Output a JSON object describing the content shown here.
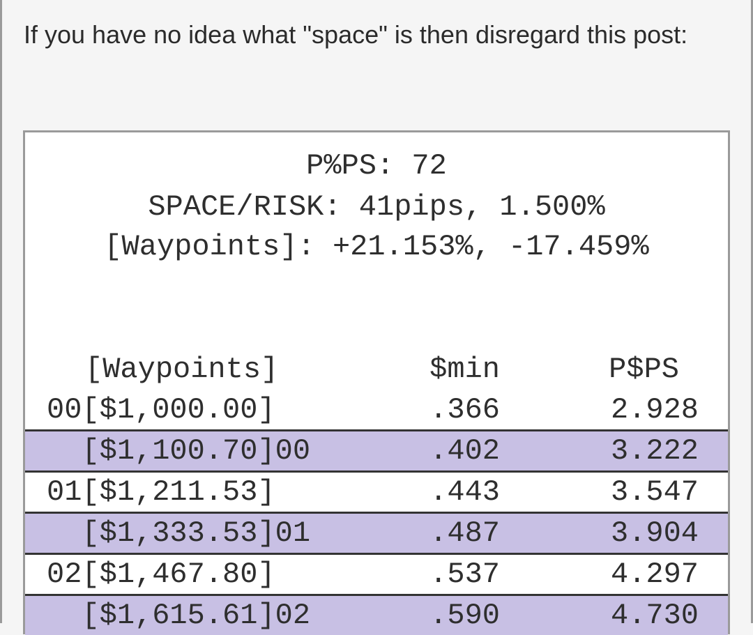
{
  "post": {
    "text": "If you have no idea what \"space\" is then disregard this post:"
  },
  "image": {
    "summary_lines": [
      "P%PS: 72",
      "SPACE/RISK: 41pips, 1.500%",
      "[Waypoints]: +21.153%, -17.459%"
    ],
    "table": {
      "headers": [
        "[Waypoints]",
        "$min",
        "P$PS"
      ],
      "rows": [
        {
          "waypoint": "00[$1,000.00]",
          "min": ".366",
          "pps": "2.928",
          "highlight": false
        },
        {
          "waypoint": "  [$1,100.70]00",
          "min": ".402",
          "pps": "3.222",
          "highlight": true
        },
        {
          "waypoint": "01[$1,211.53]",
          "min": ".443",
          "pps": "3.547",
          "highlight": false
        },
        {
          "waypoint": "  [$1,333.53]01",
          "min": ".487",
          "pps": "3.904",
          "highlight": true
        },
        {
          "waypoint": "02[$1,467.80]",
          "min": ".537",
          "pps": "4.297",
          "highlight": false
        },
        {
          "waypoint": "  [$1,615.61]02",
          "min": ".590",
          "pps": "4.730",
          "highlight": true
        }
      ]
    },
    "colors": {
      "highlight_row": "#c8c0e4",
      "separator": "#333333"
    }
  }
}
